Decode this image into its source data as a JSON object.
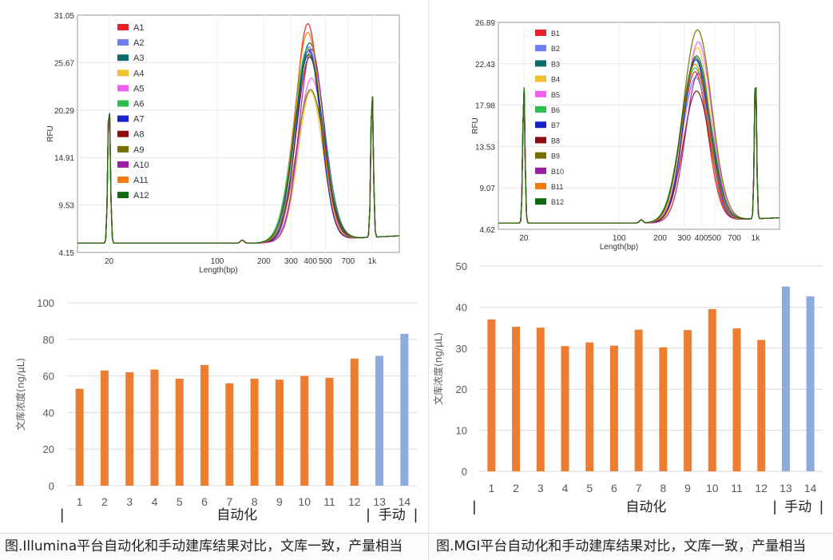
{
  "colors": {
    "bar_auto": "#ED7D31",
    "bar_manual": "#8FAADC",
    "grid": "#d9d9d9",
    "axis_text": "#595959",
    "trace_palette": [
      "#E8202A",
      "#6E7DF0",
      "#0E6B6B",
      "#F2C12E",
      "#F25EF2",
      "#2DBE4E",
      "#1424C8",
      "#8B0F10",
      "#737000",
      "#9A1FA6",
      "#F07A12",
      "#0F6A12"
    ]
  },
  "captions": {
    "left": "图.Illumina平台自动化和手动建库结果对比，文库一致，产量相当",
    "right": "图.MGI平台自动化和手动建库结果对比，文库一致，产量相当"
  },
  "chart_data": [
    {
      "type": "line",
      "panel": "illumina-electropherogram",
      "ylabel": "RFU",
      "xlabel": "Length(bp)",
      "y_ticks": [
        "31.05",
        "25.67",
        "20.29",
        "14.91",
        "9.53",
        "4.15"
      ],
      "x_ticks": [
        "20",
        "100",
        "200",
        "300",
        "400",
        "500",
        "700",
        "1k"
      ],
      "ylim": [
        4.15,
        31.05
      ],
      "x_scale": "log",
      "grid": true,
      "legend_position": "top-left",
      "series_names": [
        "A1",
        "A2",
        "A3",
        "A4",
        "A5",
        "A6",
        "A7",
        "A8",
        "A9",
        "A10",
        "A11",
        "A12"
      ],
      "peak_rfu": [
        29.8,
        27.2,
        27.6,
        22.1,
        23.6,
        27.0,
        26.8,
        26.0,
        22.3,
        26.9,
        28.8,
        26.3
      ]
    },
    {
      "type": "line",
      "panel": "mgi-electropherogram",
      "ylabel": "RFU",
      "xlabel": "Length(bp)",
      "y_ticks": [
        "26.89",
        "22.43",
        "17.98",
        "13.53",
        "9.07",
        "4.62"
      ],
      "x_ticks": [
        "20",
        "100",
        "200",
        "300",
        "400",
        "500",
        "700",
        "1k"
      ],
      "ylim": [
        4.62,
        26.89
      ],
      "x_scale": "log",
      "grid": true,
      "legend_position": "top-left",
      "series_names": [
        "B1",
        "B2",
        "B3",
        "B4",
        "B5",
        "B6",
        "B7",
        "B8",
        "B9",
        "B10",
        "B11",
        "B12"
      ],
      "peak_rfu": [
        21.4,
        20.8,
        23.1,
        24.0,
        24.6,
        21.8,
        22.7,
        19.3,
        25.9,
        21.2,
        22.2,
        22.9
      ]
    },
    {
      "type": "bar",
      "panel": "illumina-concentration",
      "categories": [
        "1",
        "2",
        "3",
        "4",
        "5",
        "6",
        "7",
        "8",
        "9",
        "10",
        "11",
        "12",
        "13",
        "14"
      ],
      "values": [
        53,
        63,
        62,
        63.5,
        58.5,
        66,
        56,
        58.5,
        58,
        60,
        59,
        69.5,
        71,
        83
      ],
      "groups": [
        "auto",
        "auto",
        "auto",
        "auto",
        "auto",
        "auto",
        "auto",
        "auto",
        "auto",
        "auto",
        "auto",
        "auto",
        "manual",
        "manual"
      ],
      "ylabel": "文库浓度(ng/μL)",
      "ylim": [
        0,
        100
      ],
      "y_ticks": [
        "0",
        "20",
        "40",
        "60",
        "80",
        "100"
      ],
      "grid": true,
      "group_labels": {
        "auto": "自动化",
        "manual": "手动"
      },
      "bracket_marks": [
        "|",
        "|",
        "|"
      ]
    },
    {
      "type": "bar",
      "panel": "mgi-concentration",
      "categories": [
        "1",
        "2",
        "3",
        "4",
        "5",
        "6",
        "7",
        "8",
        "9",
        "10",
        "11",
        "12",
        "13",
        "14"
      ],
      "values": [
        37,
        35.2,
        35,
        30.5,
        31.4,
        30.6,
        34.5,
        30.2,
        34.4,
        39.5,
        34.8,
        32,
        45,
        42.6
      ],
      "groups": [
        "auto",
        "auto",
        "auto",
        "auto",
        "auto",
        "auto",
        "auto",
        "auto",
        "auto",
        "auto",
        "auto",
        "auto",
        "manual",
        "manual"
      ],
      "ylabel": "文库浓度(ng/μL)",
      "ylim": [
        0,
        50
      ],
      "y_ticks": [
        "0",
        "10",
        "20",
        "30",
        "40",
        "50"
      ],
      "grid": true,
      "group_labels": {
        "auto": "自动化",
        "manual": "手动"
      },
      "bracket_marks": [
        "|",
        "|",
        "|"
      ]
    }
  ]
}
